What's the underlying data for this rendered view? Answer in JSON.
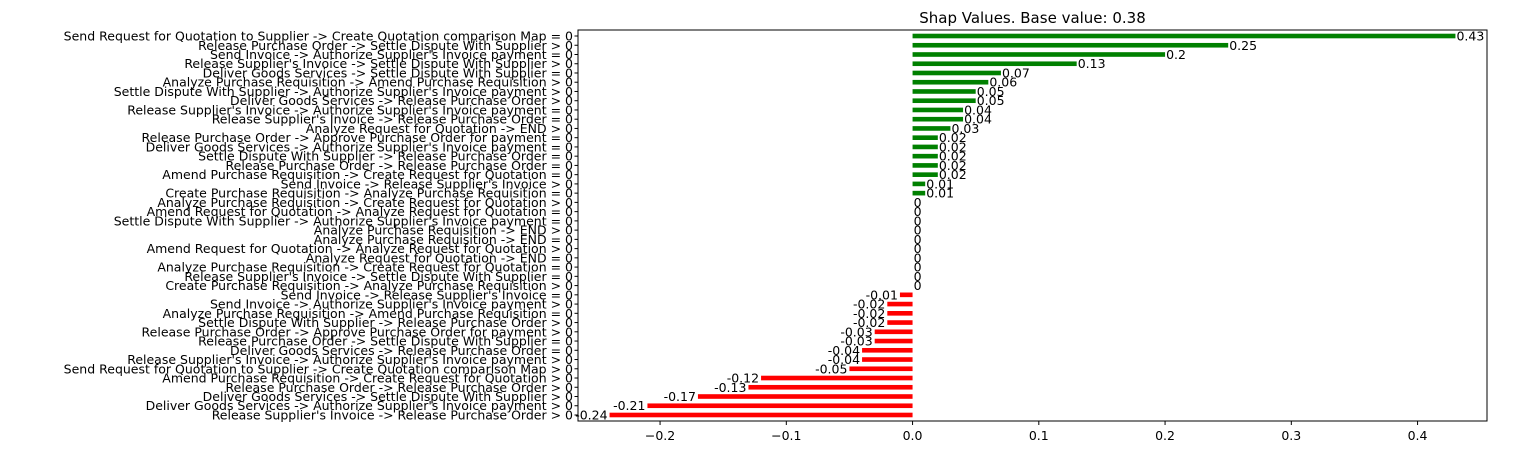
{
  "chart_data": {
    "type": "bar",
    "orientation": "horizontal",
    "title": "Shap Values. Base value: 0.38",
    "xlabel": "",
    "ylabel": "",
    "xlim": [
      -0.265,
      0.455
    ],
    "xticks": [
      -0.2,
      -0.1,
      0.0,
      0.1,
      0.2,
      0.3,
      0.4
    ],
    "xtick_labels": [
      "−0.2",
      "−0.1",
      "0.0",
      "0.1",
      "0.2",
      "0.3",
      "0.4"
    ],
    "grid": false,
    "colors": {
      "positive": "#008000",
      "negative": "#ff0000",
      "zero": "#008000"
    },
    "categories": [
      "Send Request for Quotation to Supplier -> Create Quotation comparison Map = 0",
      "Release Purchase Order -> Settle Dispute With Supplier > 0",
      "Send Invoice -> Authorize Supplier's Invoice payment = 0",
      "Release Supplier's Invoice -> Settle Dispute With Supplier > 0",
      "Deliver Goods Services -> Settle Dispute With Supplier = 0",
      "Analyze Purchase Requisition -> Amend Purchase Requisition > 0",
      "Settle Dispute With Supplier -> Authorize Supplier's Invoice payment > 0",
      "Deliver Goods Services -> Release Purchase Order > 0",
      "Release Supplier's Invoice -> Authorize Supplier's Invoice payment = 0",
      "Release Supplier's Invoice -> Release Purchase Order = 0",
      "Analyze Request for Quotation -> END > 0",
      "Release Purchase Order -> Approve Purchase Order for payment = 0",
      "Deliver Goods Services -> Authorize Supplier's Invoice payment = 0",
      "Settle Dispute With Supplier -> Release Purchase Order = 0",
      "Release Purchase Order -> Release Purchase Order = 0",
      "Amend Purchase Requisition -> Create Request for Quotation = 0",
      "Send Invoice -> Release Supplier's Invoice > 0",
      "Create Purchase Requisition -> Analyze Purchase Requisition = 0",
      "Analyze Purchase Requisition -> Create Request for Quotation > 0",
      "Amend Request for Quotation -> Analyze Request for Quotation = 0",
      "Settle Dispute With Supplier -> Authorize Supplier's Invoice payment = 0",
      "Analyze Purchase Requisition -> END > 0",
      "Analyze Purchase Requisition -> END = 0",
      "Amend Request for Quotation -> Analyze Request for Quotation > 0",
      "Analyze Request for Quotation -> END = 0",
      "Analyze Purchase Requisition -> Create Request for Quotation = 0",
      "Release Supplier's Invoice -> Settle Dispute With Supplier = 0",
      "Create Purchase Requisition -> Analyze Purchase Requisition > 0",
      "Send Invoice -> Release Supplier's Invoice = 0",
      "Send Invoice -> Authorize Supplier's Invoice payment > 0",
      "Analyze Purchase Requisition -> Amend Purchase Requisition = 0",
      "Settle Dispute With Supplier -> Release Purchase Order > 0",
      "Release Purchase Order -> Approve Purchase Order for payment > 0",
      "Release Purchase Order -> Settle Dispute With Supplier = 0",
      "Deliver Goods Services -> Release Purchase Order = 0",
      "Release Supplier's Invoice -> Authorize Supplier's Invoice payment > 0",
      "Send Request for Quotation to Supplier -> Create Quotation comparison Map > 0",
      "Amend Purchase Requisition -> Create Request for Quotation > 0",
      "Release Purchase Order -> Release Purchase Order > 0",
      "Deliver Goods Services -> Settle Dispute With Supplier > 0",
      "Deliver Goods Services -> Authorize Supplier's Invoice payment > 0",
      "Release Supplier's Invoice -> Release Purchase Order > 0"
    ],
    "values": [
      0.43,
      0.25,
      0.2,
      0.13,
      0.07,
      0.06,
      0.05,
      0.05,
      0.04,
      0.04,
      0.03,
      0.02,
      0.02,
      0.02,
      0.02,
      0.02,
      0.01,
      0.01,
      0,
      0,
      0,
      0,
      0,
      0,
      0,
      0,
      0,
      0,
      -0.01,
      -0.02,
      -0.02,
      -0.02,
      -0.03,
      -0.03,
      -0.04,
      -0.04,
      -0.05,
      -0.12,
      -0.13,
      -0.17,
      -0.21,
      -0.24
    ],
    "value_labels": [
      "0.43",
      "0.25",
      "0.2",
      "0.13",
      "0.07",
      "0.06",
      "0.05",
      "0.05",
      "0.04",
      "0.04",
      "0.03",
      "0.02",
      "0.02",
      "0.02",
      "0.02",
      "0.02",
      "0.01",
      "0.01",
      "0",
      "0",
      "0",
      "0",
      "0",
      "0",
      "0",
      "0",
      "0",
      "0",
      "-0.01",
      "-0.02",
      "-0.02",
      "-0.02",
      "-0.03",
      "-0.03",
      "-0.04",
      "-0.04",
      "-0.05",
      "-0.12",
      "-0.13",
      "-0.17",
      "-0.21",
      "-0.24"
    ]
  }
}
